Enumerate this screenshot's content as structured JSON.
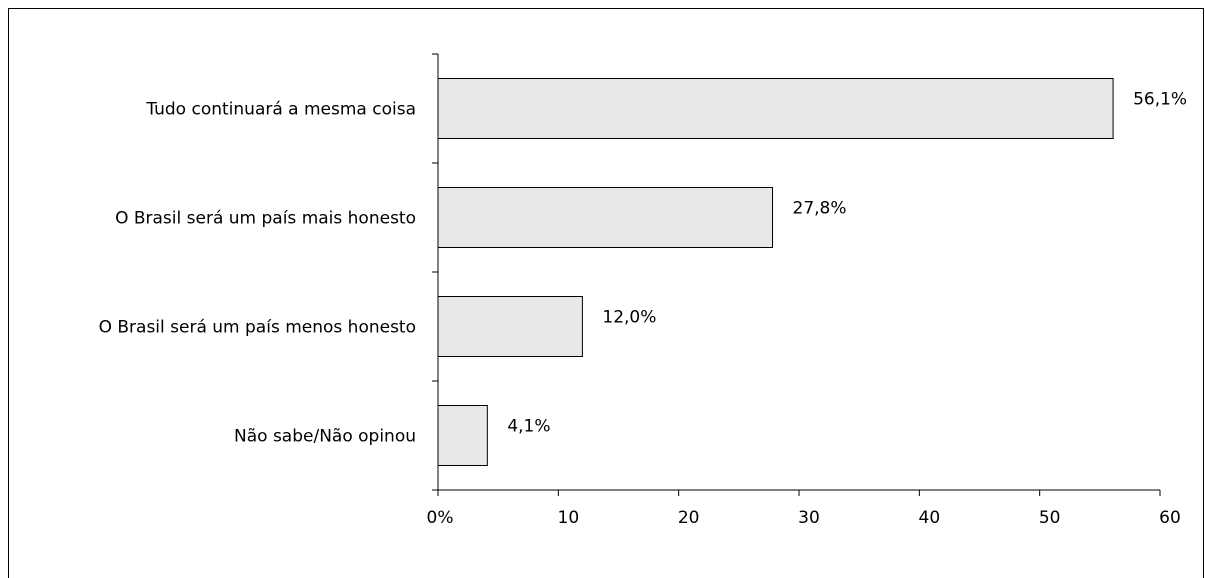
{
  "chart_data": {
    "type": "bar",
    "orientation": "horizontal",
    "categories": [
      "Tudo continuará a mesma coisa",
      "O Brasil será um país mais honesto",
      "O Brasil será um país menos honesto",
      "Não sabe/Não opinou"
    ],
    "values": [
      56.1,
      27.8,
      12.0,
      4.1
    ],
    "data_labels": [
      "56,1%",
      "27,8%",
      "12,0%",
      "4,1%"
    ],
    "x_ticks": [
      0,
      10,
      20,
      30,
      40,
      50,
      60
    ],
    "x_tick_labels": [
      "0%",
      "10",
      "20",
      "30",
      "40",
      "50",
      "60"
    ],
    "xlim": [
      0,
      60
    ],
    "grid": false,
    "legend": "none",
    "colors": {
      "bar_fill": "#e8e8e8",
      "bar_stroke": "#000000",
      "axis": "#000000",
      "text": "#000000"
    }
  }
}
